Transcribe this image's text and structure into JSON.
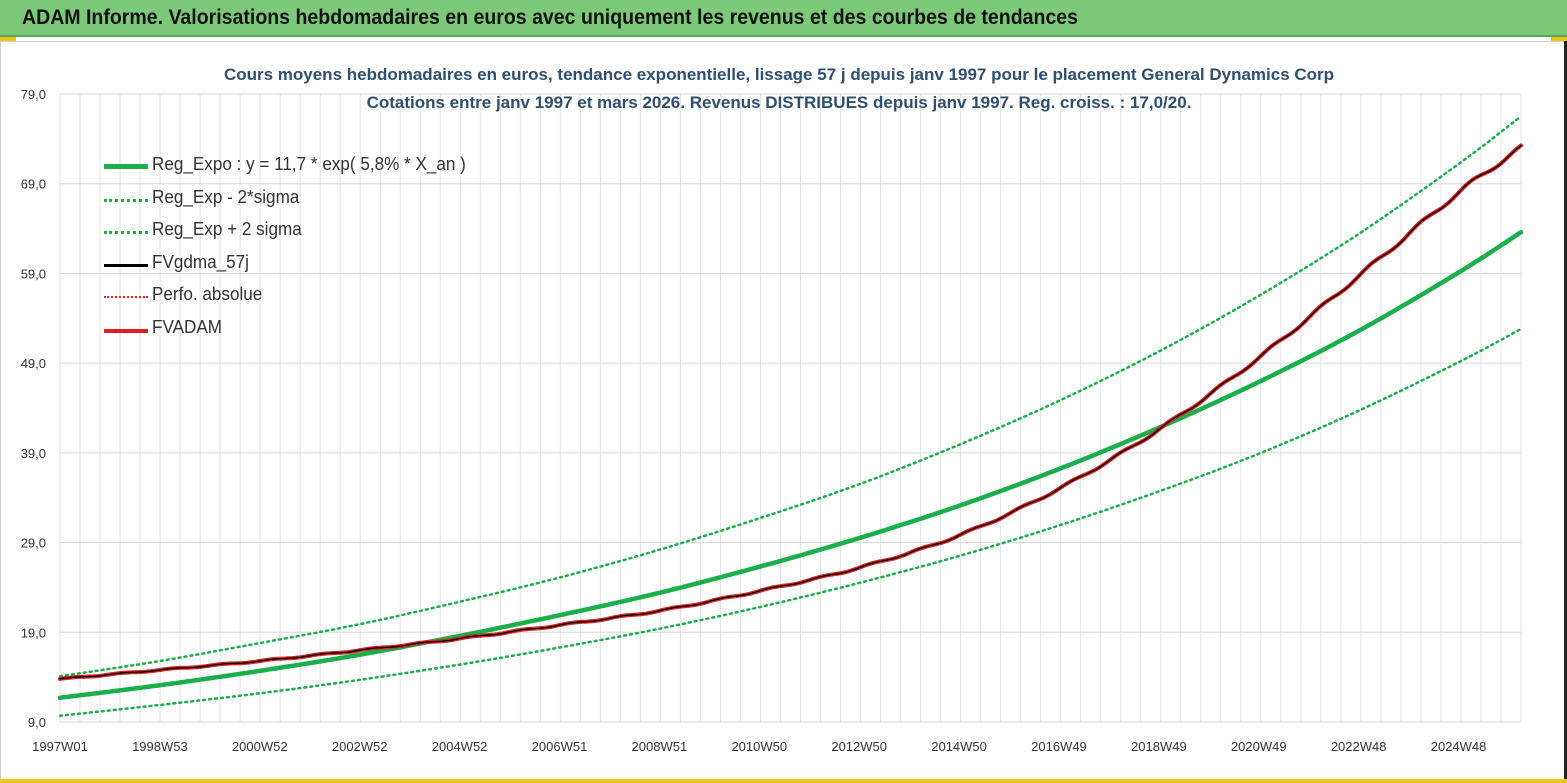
{
  "header": {
    "title": "ADAM Informe. Valorisations hebdomadaires en euros avec uniquement les revenus et des courbes de tendances"
  },
  "chart_data": {
    "type": "line",
    "title": "Cours moyens hebdomadaires en euros, tendance exponentielle, lissage 57 j depuis janv 1997 pour le placement General Dynamics Corp",
    "subtitle": "Cotations entre janv 1997 et mars 2026. Revenus DISTRIBUES depuis janv 1997. Reg. croiss. : 17,0/20.",
    "xlabel": "",
    "ylabel": "",
    "x_tick_labels": [
      "1997W01",
      "1998W53",
      "2000W52",
      "2002W52",
      "2004W52",
      "2006W51",
      "2008W51",
      "2010W50",
      "2012W50",
      "2014W50",
      "2016W49",
      "2018W49",
      "2020W49",
      "2022W48",
      "2024W48"
    ],
    "x_tick_years": [
      1997.0,
      1999.0,
      2001.0,
      2003.0,
      2005.0,
      2007.0,
      2009.0,
      2011.0,
      2013.0,
      2015.0,
      2017.0,
      2019.0,
      2021.0,
      2023.0,
      2025.0
    ],
    "xlim": [
      1997.0,
      2026.25
    ],
    "y_tick_labels": [
      "9,0",
      "19,0",
      "29,0",
      "39,0",
      "49,0",
      "59,0",
      "69,0",
      "79,0"
    ],
    "y_ticks": [
      9,
      19,
      29,
      39,
      49,
      59,
      69,
      79
    ],
    "ylim": [
      9,
      79
    ],
    "grid": true,
    "legend_position": "top-left",
    "colors": {
      "reg_expo": "#1aaf4a",
      "sigma": "#1aaf4a",
      "fvgdma": "#000000",
      "perfo": "#e02020",
      "fvadam": "#e02020"
    },
    "legend": [
      {
        "label": "Reg_Expo : y = 11,7 * exp( 5,8% *  X_an )",
        "color": "#1aaf4a",
        "style": "solid-thick"
      },
      {
        "label": "Reg_Exp - 2*sigma",
        "color": "#1aaf4a",
        "style": "dotted"
      },
      {
        "label": "Reg_Exp + 2 sigma",
        "color": "#1aaf4a",
        "style": "dotted"
      },
      {
        "label": "FVgdma_57j",
        "color": "#000000",
        "style": "solid"
      },
      {
        "label": "Perfo. absolue",
        "color": "#e02020",
        "style": "dotted"
      },
      {
        "label": "FVADAM",
        "color": "#e02020",
        "style": "solid-thick"
      }
    ],
    "series": [
      {
        "name": "Reg_Expo : y = 11,7 * exp( 5,8% *  X_an )",
        "x": [
          1997.0,
          1999.0,
          2001.0,
          2003.0,
          2005.0,
          2007.0,
          2009.0,
          2011.0,
          2013.0,
          2015.0,
          2017.0,
          2019.0,
          2021.0,
          2023.0,
          2025.0,
          2026.25
        ],
        "values": [
          11.7,
          13.1,
          14.7,
          16.5,
          18.6,
          20.9,
          23.4,
          26.3,
          29.5,
          33.1,
          37.2,
          41.8,
          46.9,
          52.6,
          59.1,
          63.6
        ]
      },
      {
        "name": "Reg_Exp - 2*sigma",
        "x": [
          1997.0,
          1999.0,
          2001.0,
          2003.0,
          2005.0,
          2007.0,
          2009.0,
          2011.0,
          2013.0,
          2015.0,
          2017.0,
          2019.0,
          2021.0,
          2023.0,
          2025.0,
          2026.25
        ],
        "values": [
          9.7,
          10.9,
          12.2,
          13.7,
          15.4,
          17.3,
          19.4,
          21.8,
          24.5,
          27.5,
          30.9,
          34.7,
          38.9,
          43.7,
          49.1,
          52.8
        ]
      },
      {
        "name": "Reg_Exp + 2 sigma",
        "x": [
          1997.0,
          1999.0,
          2001.0,
          2003.0,
          2005.0,
          2007.0,
          2009.0,
          2011.0,
          2013.0,
          2015.0,
          2017.0,
          2019.0,
          2021.0,
          2023.0,
          2025.0,
          2026.25
        ],
        "values": [
          14.1,
          15.8,
          17.8,
          19.9,
          22.4,
          25.1,
          28.2,
          31.7,
          35.5,
          39.9,
          44.8,
          50.3,
          56.5,
          63.4,
          71.2,
          76.5
        ]
      },
      {
        "name": "FVADAM",
        "x": [
          1997.0,
          1999.0,
          2001.0,
          2003.0,
          2005.0,
          2007.0,
          2009.0,
          2011.0,
          2013.0,
          2015.0,
          2017.0,
          2019.0,
          2021.0,
          2023.0,
          2025.0,
          2026.25
        ],
        "values": [
          13.8,
          14.8,
          15.8,
          17.0,
          18.3,
          19.8,
          21.4,
          23.6,
          26.2,
          29.8,
          35.0,
          41.6,
          49.6,
          58.7,
          68.0,
          73.0
        ]
      },
      {
        "name": "FVgdma_57j",
        "x": [
          1997.0,
          1999.0,
          2001.0,
          2003.0,
          2005.0,
          2007.0,
          2009.0,
          2011.0,
          2013.0,
          2015.0,
          2017.0,
          2019.0,
          2021.0,
          2023.0,
          2025.0,
          2026.25
        ],
        "values": [
          13.8,
          14.8,
          15.8,
          17.0,
          18.3,
          19.8,
          21.4,
          23.6,
          26.2,
          29.8,
          35.0,
          41.6,
          49.6,
          58.7,
          68.0,
          73.0
        ]
      }
    ]
  }
}
